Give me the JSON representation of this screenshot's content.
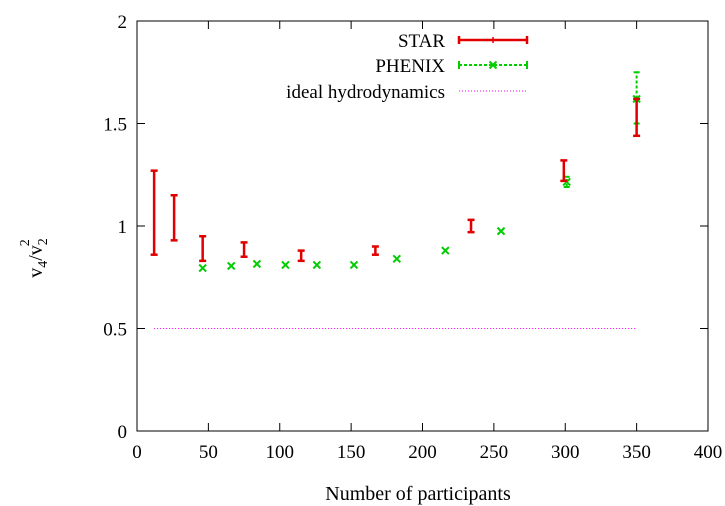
{
  "chart_data": {
    "type": "scatter",
    "xlabel": "Number of participants",
    "ylabel_base": "v",
    "ylabel_sub1": "4",
    "ylabel_sep": "/v",
    "ylabel_sub2": "2",
    "ylabel_sup": "2",
    "xlim": [
      0,
      400
    ],
    "ylim": [
      0,
      2
    ],
    "x_ticks": [
      0,
      50,
      100,
      150,
      200,
      250,
      300,
      350,
      400
    ],
    "y_ticks": [
      0,
      0.5,
      1,
      1.5,
      2
    ],
    "x_tick_labels": [
      "0",
      "50",
      "100",
      "150",
      "200",
      "250",
      "300",
      "350",
      "400"
    ],
    "y_tick_labels": [
      "0",
      "0.5",
      "1",
      "1.5",
      "2"
    ],
    "grid": false,
    "legend_position": "top-right",
    "series": [
      {
        "name": "STAR",
        "color": "#e00000",
        "style": "errorbar",
        "points": [
          {
            "x": 12,
            "low": 0.86,
            "high": 1.27
          },
          {
            "x": 26,
            "low": 0.93,
            "high": 1.15
          },
          {
            "x": 46,
            "low": 0.83,
            "high": 0.95
          },
          {
            "x": 75,
            "low": 0.85,
            "high": 0.92
          },
          {
            "x": 115,
            "low": 0.83,
            "high": 0.88
          },
          {
            "x": 167,
            "low": 0.86,
            "high": 0.9
          },
          {
            "x": 234,
            "low": 0.97,
            "high": 1.03
          },
          {
            "x": 299,
            "low": 1.22,
            "high": 1.32
          },
          {
            "x": 350,
            "low": 1.44,
            "high": 1.62
          }
        ]
      },
      {
        "name": "PHENIX",
        "color": "#00cc00",
        "style": "marker",
        "points": [
          {
            "x": 46,
            "y": 0.795
          },
          {
            "x": 66,
            "y": 0.805
          },
          {
            "x": 84,
            "y": 0.815
          },
          {
            "x": 104,
            "y": 0.81
          },
          {
            "x": 126,
            "y": 0.81
          },
          {
            "x": 152,
            "y": 0.81
          },
          {
            "x": 182,
            "y": 0.84
          },
          {
            "x": 216,
            "y": 0.88
          },
          {
            "x": 255,
            "y": 0.975
          },
          {
            "x": 301,
            "y": 1.215,
            "low": 1.19,
            "high": 1.24
          },
          {
            "x": 350,
            "y": 1.62,
            "low": 1.5,
            "high": 1.75
          }
        ]
      },
      {
        "name": "ideal hydrodynamics",
        "color": "#ff00ff",
        "style": "dotted-line",
        "x": [
          12,
          350
        ],
        "y": [
          0.5,
          0.5
        ]
      }
    ]
  }
}
